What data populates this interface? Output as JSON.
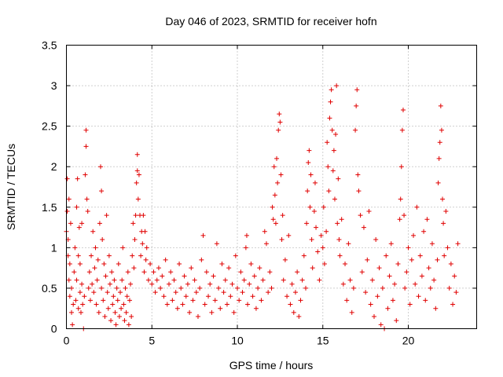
{
  "chart_data": {
    "type": "scatter",
    "title": "Day 046 of 2023, SRMTID for receiver hofn",
    "xlabel": "GPS time / hours",
    "ylabel": "SRMTID / TECUs",
    "xlim": [
      0,
      24
    ],
    "ylim": [
      0,
      3.5
    ],
    "x_ticks": [
      0,
      5,
      10,
      15,
      20
    ],
    "y_ticks": [
      0,
      0.5,
      1,
      1.5,
      2,
      2.5,
      3,
      3.5
    ],
    "x_tick_labels": [
      "0",
      "5",
      "10",
      "15",
      "20"
    ],
    "y_tick_labels": [
      "0",
      "0.5",
      "1",
      "1.5",
      "2",
      "2.5",
      "3",
      "3.5"
    ],
    "grid": true,
    "marker": "+",
    "series": [
      {
        "name": "SRMTID",
        "color": "#e00000",
        "points": [
          [
            0.0,
            1.2
          ],
          [
            0.05,
            1.85
          ],
          [
            0.05,
            1.45
          ],
          [
            0.1,
            1.1
          ],
          [
            0.1,
            0.9
          ],
          [
            0.15,
            1.6
          ],
          [
            0.15,
            0.6
          ],
          [
            0.2,
            0.8
          ],
          [
            0.2,
            0.4
          ],
          [
            0.25,
            1.3
          ],
          [
            0.3,
            0.2
          ],
          [
            0.3,
            0.5
          ],
          [
            0.35,
            0.05
          ],
          [
            0.4,
            0.3
          ],
          [
            0.45,
            0.7
          ],
          [
            0.5,
            1.0
          ],
          [
            0.55,
            0.35
          ],
          [
            0.6,
            0.6
          ],
          [
            0.6,
            1.5
          ],
          [
            0.65,
            1.85
          ],
          [
            0.7,
            0.9
          ],
          [
            0.7,
            0.25
          ],
          [
            0.75,
            1.25
          ],
          [
            0.8,
            0.45
          ],
          [
            0.8,
            0.8
          ],
          [
            0.85,
            0.2
          ],
          [
            0.9,
            1.3
          ],
          [
            0.9,
            0.55
          ],
          [
            0.95,
            0.3
          ],
          [
            1.0,
            0.0
          ],
          [
            1.05,
            0.4
          ],
          [
            1.1,
            1.9
          ],
          [
            1.15,
            2.25
          ],
          [
            1.15,
            2.45
          ],
          [
            1.2,
            1.6
          ],
          [
            1.25,
            1.45
          ],
          [
            1.3,
            0.5
          ],
          [
            1.35,
            0.7
          ],
          [
            1.4,
            0.35
          ],
          [
            1.45,
            0.9
          ],
          [
            1.5,
            0.55
          ],
          [
            1.55,
            1.2
          ],
          [
            1.6,
            0.45
          ],
          [
            1.65,
            0.75
          ],
          [
            1.7,
            1.0
          ],
          [
            1.75,
            0.3
          ],
          [
            1.8,
            0.6
          ],
          [
            1.85,
            0.85
          ],
          [
            1.9,
            0.2
          ],
          [
            1.95,
            1.3
          ],
          [
            2.0,
            2.0
          ],
          [
            2.05,
            1.7
          ],
          [
            2.05,
            0.5
          ],
          [
            2.1,
            1.1
          ],
          [
            2.15,
            0.35
          ],
          [
            2.2,
            0.8
          ],
          [
            2.25,
            0.15
          ],
          [
            2.3,
            0.65
          ],
          [
            2.35,
            1.4
          ],
          [
            2.4,
            0.45
          ],
          [
            2.45,
            0.25
          ],
          [
            2.5,
            0.9
          ],
          [
            2.55,
            0.55
          ],
          [
            2.6,
            0.1
          ],
          [
            2.65,
            0.7
          ],
          [
            2.7,
            0.3
          ],
          [
            2.75,
            0.4
          ],
          [
            2.8,
            0.6
          ],
          [
            2.85,
            0.2
          ],
          [
            2.9,
            0.05
          ],
          [
            2.95,
            0.5
          ],
          [
            3.0,
            0.35
          ],
          [
            3.05,
            0.8
          ],
          [
            3.1,
            0.15
          ],
          [
            3.15,
            0.45
          ],
          [
            3.2,
            0.25
          ],
          [
            3.25,
            0.6
          ],
          [
            3.3,
            1.0
          ],
          [
            3.35,
            0.3
          ],
          [
            3.4,
            0.1
          ],
          [
            3.45,
            0.5
          ],
          [
            3.5,
            0.2
          ],
          [
            3.55,
            0.4
          ],
          [
            3.6,
            0.7
          ],
          [
            3.65,
            0.05
          ],
          [
            3.7,
            0.35
          ],
          [
            3.75,
            0.55
          ],
          [
            3.8,
            0.15
          ],
          [
            3.85,
            0.9
          ],
          [
            3.9,
            1.3
          ],
          [
            3.95,
            0.75
          ],
          [
            4.0,
            1.1
          ],
          [
            4.05,
            1.4
          ],
          [
            4.1,
            1.8
          ],
          [
            4.15,
            2.15
          ],
          [
            4.15,
            1.95
          ],
          [
            4.2,
            1.6
          ],
          [
            4.25,
            1.9
          ],
          [
            4.3,
            1.4
          ],
          [
            4.35,
            0.9
          ],
          [
            4.4,
            1.2
          ],
          [
            4.45,
            1.05
          ],
          [
            4.5,
            1.4
          ],
          [
            4.55,
            0.7
          ],
          [
            4.6,
            1.2
          ],
          [
            4.65,
            0.85
          ],
          [
            4.7,
            1.0
          ],
          [
            4.8,
            0.6
          ],
          [
            4.9,
            0.8
          ],
          [
            5.0,
            0.55
          ],
          [
            5.1,
            0.7
          ],
          [
            5.2,
            0.45
          ],
          [
            5.3,
            0.6
          ],
          [
            5.4,
            0.75
          ],
          [
            5.5,
            0.5
          ],
          [
            5.6,
            0.65
          ],
          [
            5.7,
            0.4
          ],
          [
            5.8,
            0.85
          ],
          [
            5.9,
            0.3
          ],
          [
            6.0,
            0.55
          ],
          [
            6.1,
            0.7
          ],
          [
            6.2,
            0.35
          ],
          [
            6.3,
            0.6
          ],
          [
            6.4,
            0.45
          ],
          [
            6.5,
            0.25
          ],
          [
            6.6,
            0.8
          ],
          [
            6.7,
            0.5
          ],
          [
            6.8,
            0.3
          ],
          [
            6.9,
            0.65
          ],
          [
            7.0,
            0.4
          ],
          [
            7.1,
            0.55
          ],
          [
            7.2,
            0.2
          ],
          [
            7.3,
            0.75
          ],
          [
            7.4,
            0.35
          ],
          [
            7.5,
            0.6
          ],
          [
            7.6,
            0.45
          ],
          [
            7.7,
            0.15
          ],
          [
            7.8,
            0.5
          ],
          [
            7.9,
            0.85
          ],
          [
            8.0,
            1.15
          ],
          [
            8.1,
            0.3
          ],
          [
            8.2,
            0.7
          ],
          [
            8.3,
            0.4
          ],
          [
            8.4,
            0.55
          ],
          [
            8.5,
            0.2
          ],
          [
            8.6,
            0.65
          ],
          [
            8.7,
            0.35
          ],
          [
            8.8,
            1.05
          ],
          [
            8.9,
            0.5
          ],
          [
            9.0,
            0.25
          ],
          [
            9.1,
            0.8
          ],
          [
            9.2,
            0.45
          ],
          [
            9.3,
            0.6
          ],
          [
            9.4,
            0.3
          ],
          [
            9.5,
            0.75
          ],
          [
            9.6,
            0.4
          ],
          [
            9.7,
            0.55
          ],
          [
            9.8,
            0.2
          ],
          [
            9.9,
            0.9
          ],
          [
            10.0,
            0.5
          ],
          [
            10.1,
            0.35
          ],
          [
            10.2,
            0.7
          ],
          [
            10.3,
            0.45
          ],
          [
            10.4,
            0.6
          ],
          [
            10.5,
            1.0
          ],
          [
            10.55,
            1.15
          ],
          [
            10.6,
            0.3
          ],
          [
            10.7,
            0.55
          ],
          [
            10.8,
            0.8
          ],
          [
            10.9,
            0.4
          ],
          [
            11.0,
            0.65
          ],
          [
            11.1,
            0.25
          ],
          [
            11.2,
            0.5
          ],
          [
            11.3,
            0.75
          ],
          [
            11.4,
            0.35
          ],
          [
            11.5,
            0.6
          ],
          [
            11.6,
            1.2
          ],
          [
            11.7,
            1.05
          ],
          [
            11.8,
            0.45
          ],
          [
            11.9,
            0.7
          ],
          [
            12.0,
            0.5
          ],
          [
            12.05,
            1.5
          ],
          [
            12.1,
            1.35
          ],
          [
            12.15,
            2.0
          ],
          [
            12.2,
            1.65
          ],
          [
            12.25,
            1.3
          ],
          [
            12.3,
            2.1
          ],
          [
            12.35,
            1.8
          ],
          [
            12.4,
            2.45
          ],
          [
            12.45,
            2.65
          ],
          [
            12.5,
            2.55
          ],
          [
            12.55,
            1.9
          ],
          [
            12.6,
            1.1
          ],
          [
            12.65,
            1.4
          ],
          [
            12.7,
            0.6
          ],
          [
            12.8,
            0.85
          ],
          [
            12.9,
            0.4
          ],
          [
            13.0,
            1.15
          ],
          [
            13.1,
            0.3
          ],
          [
            13.2,
            0.55
          ],
          [
            13.3,
            0.2
          ],
          [
            13.4,
            0.45
          ],
          [
            13.5,
            0.7
          ],
          [
            13.6,
            0.15
          ],
          [
            13.7,
            0.35
          ],
          [
            13.8,
            0.6
          ],
          [
            13.9,
            0.9
          ],
          [
            14.0,
            0.5
          ],
          [
            14.05,
            1.3
          ],
          [
            14.1,
            1.7
          ],
          [
            14.15,
            2.05
          ],
          [
            14.2,
            2.2
          ],
          [
            14.25,
            1.5
          ],
          [
            14.3,
            1.9
          ],
          [
            14.35,
            1.1
          ],
          [
            14.4,
            0.75
          ],
          [
            14.5,
            1.45
          ],
          [
            14.55,
            1.8
          ],
          [
            14.6,
            1.25
          ],
          [
            14.7,
            0.95
          ],
          [
            14.8,
            0.6
          ],
          [
            14.9,
            1.15
          ],
          [
            15.0,
            1.0
          ],
          [
            15.05,
            1.5
          ],
          [
            15.1,
            0.8
          ],
          [
            15.2,
            1.2
          ],
          [
            15.25,
            2.3
          ],
          [
            15.3,
            2.0
          ],
          [
            15.35,
            1.7
          ],
          [
            15.4,
            2.6
          ],
          [
            15.45,
            2.8
          ],
          [
            15.5,
            2.95
          ],
          [
            15.55,
            2.45
          ],
          [
            15.6,
            1.95
          ],
          [
            15.65,
            2.2
          ],
          [
            15.7,
            1.6
          ],
          [
            15.75,
            2.4
          ],
          [
            15.8,
            3.0
          ],
          [
            15.85,
            1.3
          ],
          [
            15.9,
            1.85
          ],
          [
            15.95,
            1.1
          ],
          [
            16.0,
            0.9
          ],
          [
            16.1,
            1.35
          ],
          [
            16.2,
            0.55
          ],
          [
            16.3,
            0.8
          ],
          [
            16.4,
            0.35
          ],
          [
            16.5,
            1.05
          ],
          [
            16.6,
            0.6
          ],
          [
            16.7,
            0.2
          ],
          [
            16.8,
            0.5
          ],
          [
            16.9,
            2.45
          ],
          [
            16.95,
            2.75
          ],
          [
            17.0,
            2.95
          ],
          [
            17.05,
            1.9
          ],
          [
            17.1,
            1.7
          ],
          [
            17.2,
            1.4
          ],
          [
            17.3,
            0.7
          ],
          [
            17.4,
            1.25
          ],
          [
            17.5,
            0.45
          ],
          [
            17.6,
            0.85
          ],
          [
            17.7,
            1.45
          ],
          [
            17.8,
            0.3
          ],
          [
            17.9,
            0.6
          ],
          [
            18.0,
            0.15
          ],
          [
            18.1,
            1.1
          ],
          [
            18.2,
            0.4
          ],
          [
            18.3,
            0.75
          ],
          [
            18.4,
            0.05
          ],
          [
            18.5,
            0.5
          ],
          [
            18.6,
            0.0
          ],
          [
            18.7,
            0.9
          ],
          [
            18.8,
            0.25
          ],
          [
            18.9,
            0.65
          ],
          [
            19.0,
            1.05
          ],
          [
            19.1,
            0.35
          ],
          [
            19.2,
            0.55
          ],
          [
            19.3,
            0.1
          ],
          [
            19.4,
            0.8
          ],
          [
            19.5,
            1.35
          ],
          [
            19.55,
            1.6
          ],
          [
            19.6,
            2.0
          ],
          [
            19.65,
            2.45
          ],
          [
            19.7,
            2.7
          ],
          [
            19.75,
            1.4
          ],
          [
            19.8,
            0.5
          ],
          [
            19.9,
            0.7
          ],
          [
            20.0,
            1.0
          ],
          [
            20.1,
            0.3
          ],
          [
            20.2,
            0.85
          ],
          [
            20.3,
            1.15
          ],
          [
            20.4,
            0.55
          ],
          [
            20.5,
            1.5
          ],
          [
            20.6,
            0.4
          ],
          [
            20.7,
            0.9
          ],
          [
            20.8,
            0.65
          ],
          [
            20.9,
            1.2
          ],
          [
            21.0,
            0.35
          ],
          [
            21.1,
            1.35
          ],
          [
            21.2,
            0.75
          ],
          [
            21.3,
            0.5
          ],
          [
            21.4,
            1.05
          ],
          [
            21.5,
            0.6
          ],
          [
            21.6,
            0.25
          ],
          [
            21.7,
            0.85
          ],
          [
            21.75,
            1.8
          ],
          [
            21.8,
            2.1
          ],
          [
            21.85,
            2.3
          ],
          [
            21.9,
            2.75
          ],
          [
            21.95,
            2.45
          ],
          [
            22.0,
            1.6
          ],
          [
            22.05,
            1.3
          ],
          [
            22.1,
            0.9
          ],
          [
            22.2,
            1.45
          ],
          [
            22.3,
            1.0
          ],
          [
            22.4,
            0.5
          ],
          [
            22.5,
            0.8
          ],
          [
            22.6,
            0.3
          ],
          [
            22.7,
            0.65
          ],
          [
            22.8,
            0.45
          ],
          [
            22.9,
            1.05
          ]
        ]
      }
    ]
  }
}
